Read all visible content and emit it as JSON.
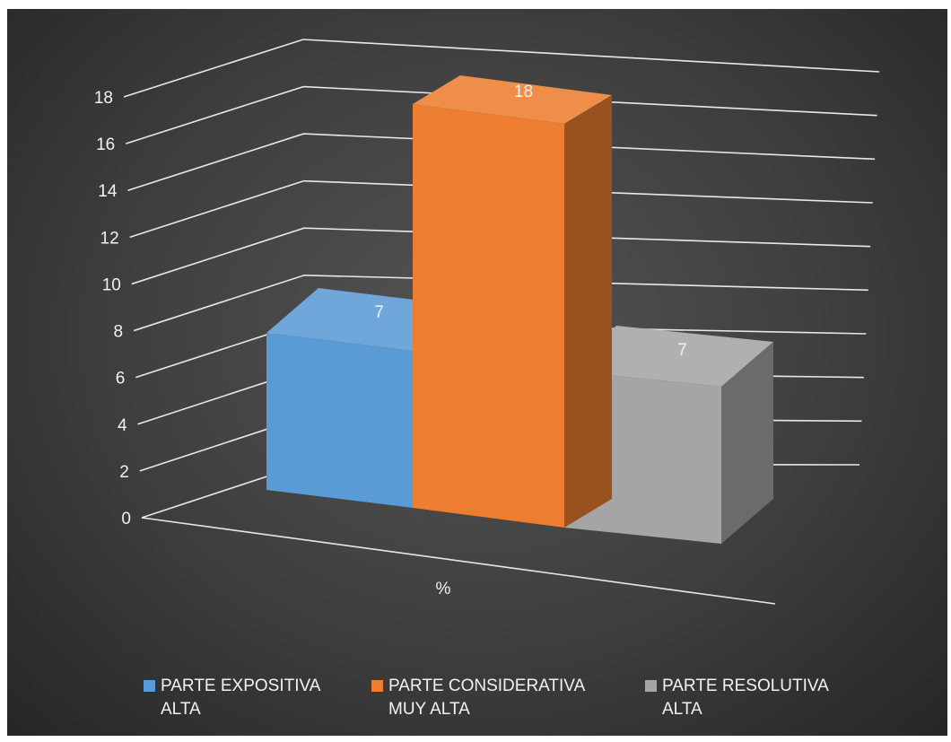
{
  "chart_data": {
    "type": "bar",
    "style": "3d-clustered-column",
    "categories": [
      "%"
    ],
    "series": [
      {
        "name": "PARTE EXPOSITIVA\nALTA",
        "values": [
          7
        ],
        "color": "#5b9bd5"
      },
      {
        "name": "PARTE CONSIDERATIVA\nMUY ALTA",
        "values": [
          18
        ],
        "color": "#ed7d31"
      },
      {
        "name": "PARTE RESOLUTIVA\nALTA",
        "values": [
          7
        ],
        "color": "#a5a5a5"
      }
    ],
    "data_labels": [
      "7",
      "18",
      "7"
    ],
    "xlabel": "%",
    "ylim": [
      0,
      18
    ],
    "y_ticks": [
      "0",
      "2",
      "4",
      "6",
      "8",
      "10",
      "12",
      "14",
      "16",
      "18"
    ],
    "grid": true,
    "legend_position": "bottom"
  }
}
